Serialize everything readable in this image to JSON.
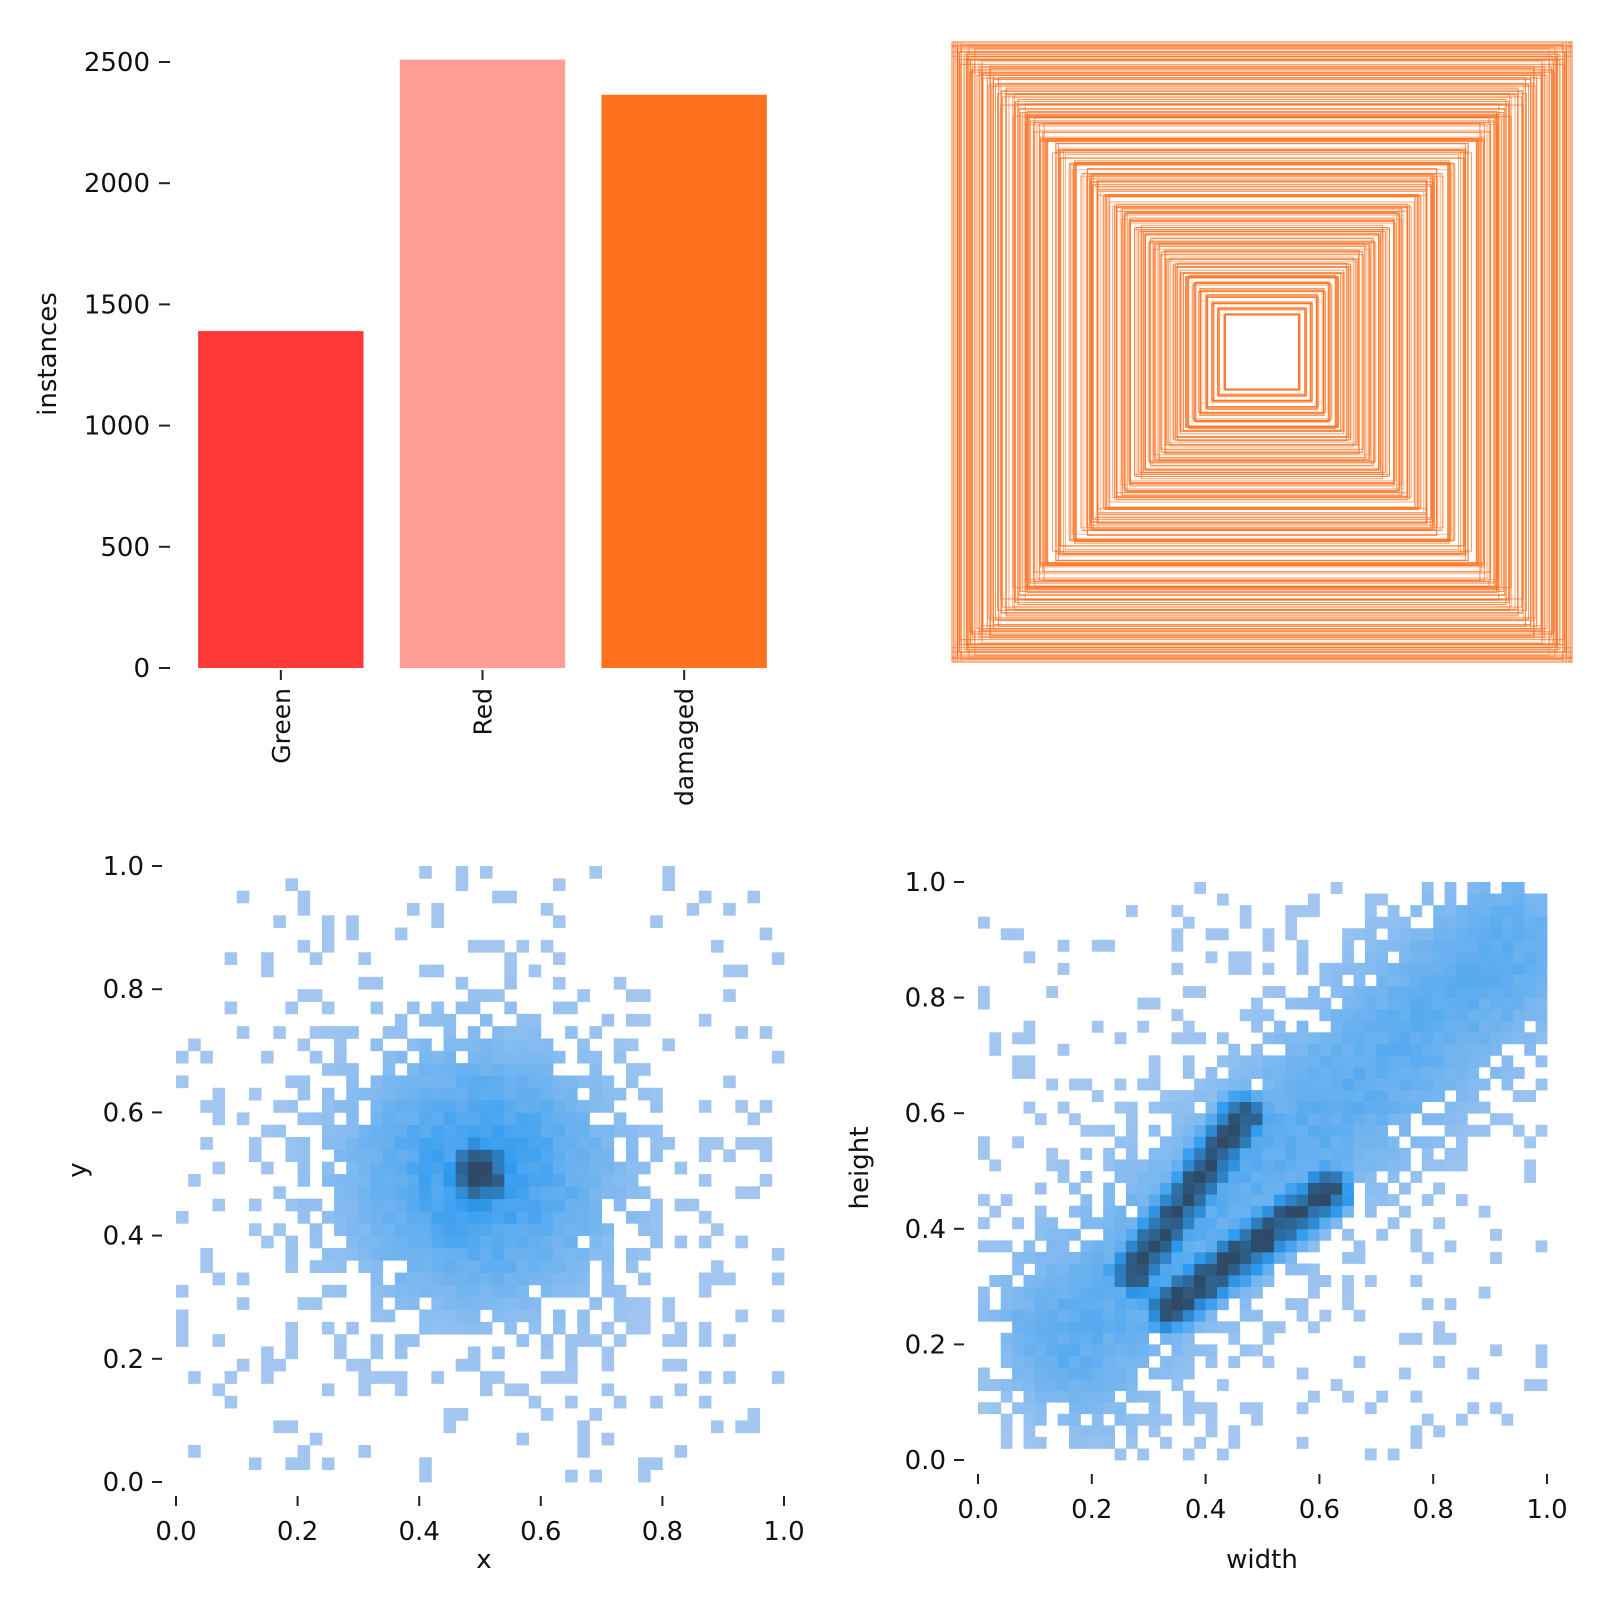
{
  "chart_data": [
    {
      "id": "class-counts",
      "type": "bar",
      "title": "",
      "xlabel": "",
      "ylabel": "instances",
      "categories": [
        "Green",
        "Red",
        "damaged"
      ],
      "values": [
        1390,
        2510,
        2365
      ],
      "colors": [
        "#FF3838",
        "#FF9D97",
        "#FF701F"
      ],
      "ylim": [
        0,
        2550
      ],
      "yticks": [
        0,
        500,
        1000,
        1500,
        2000,
        2500
      ],
      "ytick_labels": [
        "0",
        "500",
        "1000",
        "1500",
        "2000",
        "2500"
      ]
    },
    {
      "id": "box-overlay",
      "type": "other",
      "description_kind": "centered bounding box outlines",
      "stroke_color": "#FF701F",
      "box_size_fractions": [
        1.0,
        0.99,
        0.98,
        0.96,
        0.95,
        0.93,
        0.92,
        0.9,
        0.88,
        0.86,
        0.84,
        0.82,
        0.8,
        0.78,
        0.76,
        0.74,
        0.72,
        0.7,
        0.68,
        0.66,
        0.64,
        0.62,
        0.6,
        0.58,
        0.56,
        0.54,
        0.52,
        0.5,
        0.48,
        0.46,
        0.44,
        0.42,
        0.4,
        0.38,
        0.36,
        0.34,
        0.32,
        0.3,
        0.28,
        0.26,
        0.24,
        0.22,
        0.2,
        0.18,
        0.16,
        0.14,
        0.12
      ]
    },
    {
      "id": "xy-hist",
      "type": "heatmap",
      "xlabel": "x",
      "ylabel": "y",
      "xlim": [
        0,
        1
      ],
      "ylim": [
        0,
        1
      ],
      "xticks": [
        0.0,
        0.2,
        0.4,
        0.6,
        0.8,
        1.0
      ],
      "xtick_labels": [
        "0.0",
        "0.2",
        "0.4",
        "0.6",
        "0.8",
        "1.0"
      ],
      "yticks": [
        0.0,
        0.2,
        0.4,
        0.6,
        0.8,
        1.0
      ],
      "ytick_labels": [
        "0.0",
        "0.2",
        "0.4",
        "0.6",
        "0.8",
        "1.0"
      ],
      "bins": 50,
      "distribution": {
        "clusters": [
          {
            "cx": 0.5,
            "cy": 0.5,
            "sx": 0.16,
            "sy": 0.15,
            "peak": 0.45
          },
          {
            "cx": 0.5,
            "cy": 0.5,
            "sx": 0.045,
            "sy": 0.045,
            "peak": 1.0
          }
        ],
        "sparse_density": 0.12
      },
      "colors": {
        "low": "#A8C8F0",
        "mid": "#2E9BF0",
        "high": "#2E4A66"
      }
    },
    {
      "id": "wh-hist",
      "type": "heatmap",
      "xlabel": "width",
      "ylabel": "height",
      "xlim": [
        0,
        1
      ],
      "ylim": [
        0,
        1
      ],
      "xticks": [
        0.0,
        0.2,
        0.4,
        0.6,
        0.8,
        1.0
      ],
      "xtick_labels": [
        "0.0",
        "0.2",
        "0.4",
        "0.6",
        "0.8",
        "1.0"
      ],
      "yticks": [
        0.0,
        0.2,
        0.4,
        0.6,
        0.8,
        1.0
      ],
      "ytick_labels": [
        "0.0",
        "0.2",
        "0.4",
        "0.6",
        "0.8",
        "1.0"
      ],
      "bins": 50,
      "distribution": {
        "ridges": [
          {
            "x0": 0.27,
            "y0": 0.32,
            "x1": 0.47,
            "y1": 0.6,
            "width": 0.03,
            "peak": 1.0
          },
          {
            "x0": 0.33,
            "y0": 0.26,
            "x1": 0.62,
            "y1": 0.47,
            "width": 0.03,
            "peak": 1.0
          },
          {
            "x0": 0.15,
            "y0": 0.2,
            "x1": 0.95,
            "y1": 0.9,
            "width": 0.12,
            "peak": 0.3
          }
        ],
        "sparse_density": 0.1
      },
      "colors": {
        "low": "#A8C8F0",
        "mid": "#2E9BF0",
        "high": "#2E4A66"
      }
    }
  ]
}
